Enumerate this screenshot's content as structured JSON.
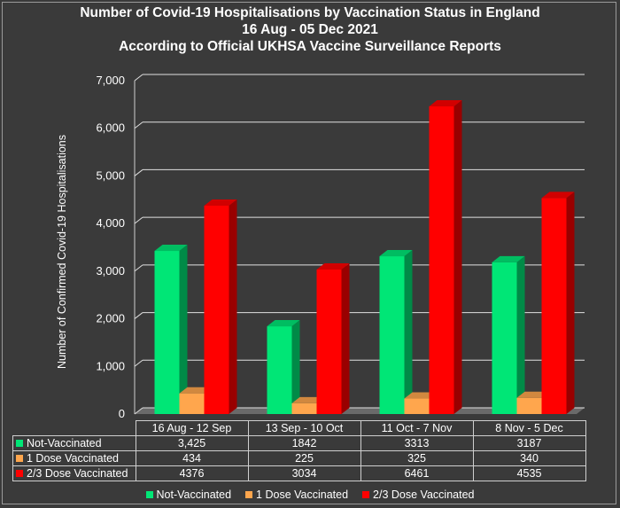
{
  "title": {
    "line1": "Number of Covid-19 Hospitalisations by Vaccination Status in England",
    "line2": "16 Aug - 05 Dec 2021",
    "line3": "According to Official UKHSA Vaccine Surveillance Reports"
  },
  "colors": {
    "background": "#3a3a3a",
    "gridline": "#e0e0e0",
    "not_vaccinated": "#00e676",
    "one_dose": "#ffa64d",
    "two_three_dose": "#ff0000"
  },
  "chart_data": {
    "type": "bar",
    "title": "Number of Covid-19 Hospitalisations by Vaccination Status in England",
    "subtitle": "16 Aug - 05 Dec 2021 / According to Official UKHSA Vaccine Surveillance Reports",
    "xlabel": "",
    "ylabel": "Number of Confirmed Covid-19 Hospitalisations",
    "ylim": [
      0,
      7000
    ],
    "yticks": [
      0,
      1000,
      2000,
      3000,
      4000,
      5000,
      6000,
      7000
    ],
    "ytick_labels": [
      "0",
      "1,000",
      "2,000",
      "3,000",
      "4,000",
      "5,000",
      "6,000",
      "7,000"
    ],
    "grid": true,
    "legend_position": "bottom",
    "categories": [
      "16 Aug - 12 Sep",
      "13 Sep - 10 Oct",
      "11 Oct - 7 Nov",
      "8 Nov - 5 Dec"
    ],
    "series": [
      {
        "name": "Not-Vaccinated",
        "values": [
          3425,
          1842,
          3313,
          3187
        ],
        "table_labels": [
          "3,425",
          "1842",
          "3313",
          "3187"
        ],
        "color": "#00e676"
      },
      {
        "name": "1 Dose Vaccinated",
        "values": [
          434,
          225,
          325,
          340
        ],
        "table_labels": [
          "434",
          "225",
          "325",
          "340"
        ],
        "color": "#ffa64d"
      },
      {
        "name": "2/3 Dose Vaccinated",
        "values": [
          4376,
          3034,
          6461,
          4535
        ],
        "table_labels": [
          "4376",
          "3034",
          "6461",
          "4535"
        ],
        "color": "#ff0000"
      }
    ]
  }
}
